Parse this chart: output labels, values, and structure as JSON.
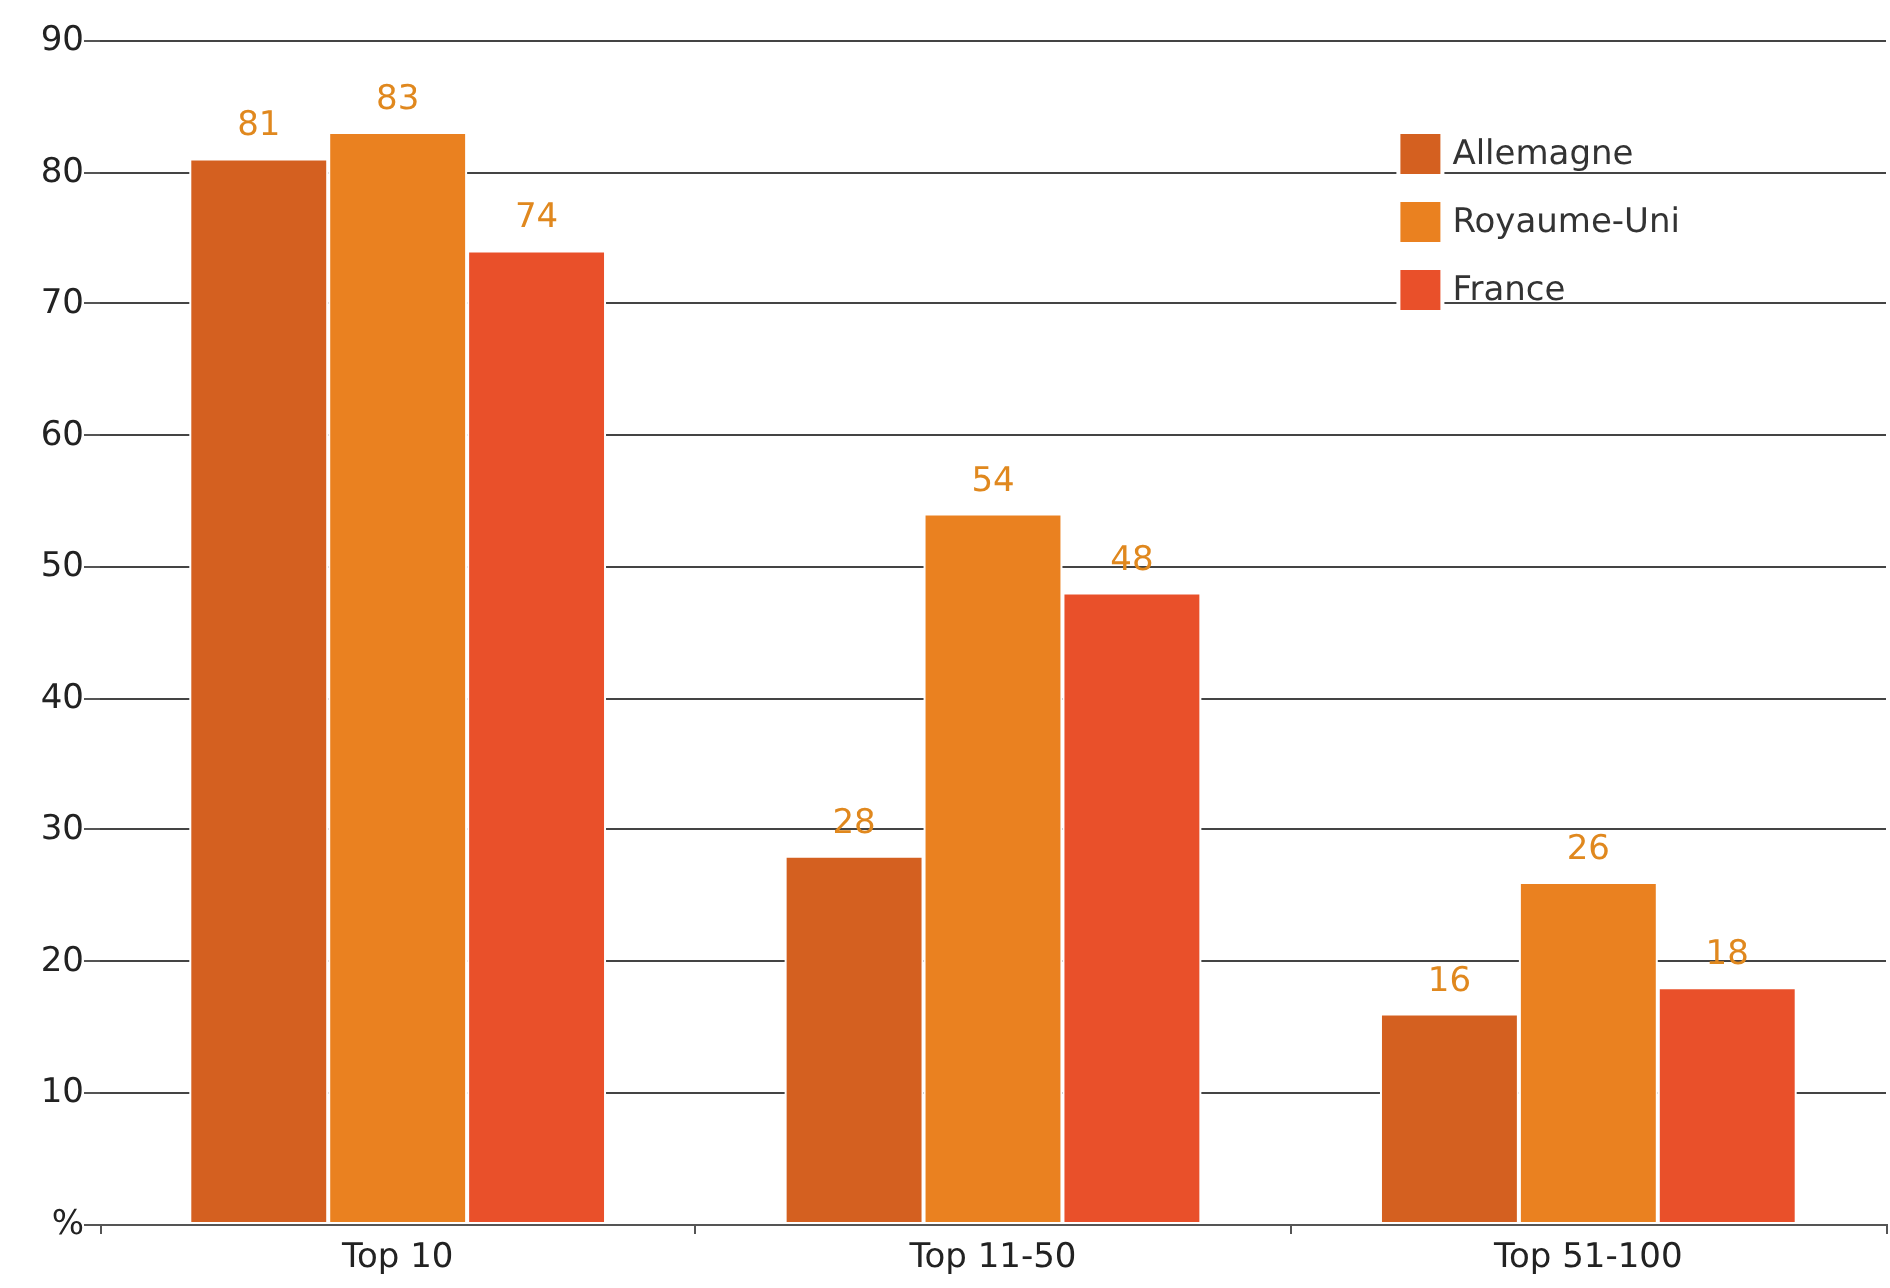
{
  "chart_data": {
    "type": "bar",
    "categories": [
      "Top 10",
      "Top 11-50",
      "Top 51-100"
    ],
    "series": [
      {
        "name": "Allemagne",
        "color": "#d46020",
        "values": [
          81,
          28,
          16
        ]
      },
      {
        "name": "Royaume-Uni",
        "color": "#ea8120",
        "values": [
          83,
          54,
          26
        ]
      },
      {
        "name": "France",
        "color": "#e9502a",
        "values": [
          74,
          48,
          18
        ]
      }
    ],
    "ylim": [
      0,
      90
    ],
    "yticks": [
      {
        "value": 0,
        "label": "%"
      },
      10,
      20,
      30,
      40,
      50,
      60,
      70,
      80,
      90
    ],
    "grid": "y",
    "legend": "top right",
    "data_labels": true
  }
}
